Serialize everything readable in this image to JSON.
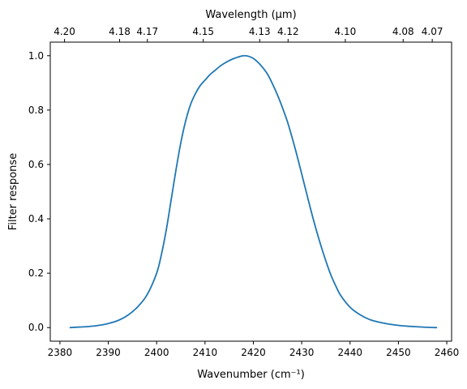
{
  "chart_data": {
    "type": "line",
    "title": "",
    "xlabel": "Wavenumber (cm⁻¹)",
    "ylabel": "Filter response",
    "top_xlabel": "Wavelength (μm)",
    "xlim": [
      2378,
      2461
    ],
    "ylim": [
      -0.05,
      1.05
    ],
    "grid": false,
    "legend": "none",
    "x_ticks": [
      2380,
      2390,
      2400,
      2410,
      2420,
      2430,
      2440,
      2450,
      2460
    ],
    "x_tick_labels": [
      "2380",
      "2390",
      "2400",
      "2410",
      "2420",
      "2430",
      "2440",
      "2450",
      "2460"
    ],
    "y_ticks": [
      0.0,
      0.2,
      0.4,
      0.6,
      0.8,
      1.0
    ],
    "y_tick_labels": [
      "0.0",
      "0.2",
      "0.4",
      "0.6",
      "0.8",
      "1.0"
    ],
    "top_ticks": [
      {
        "wavenumber": 2380.95,
        "label": "4.20"
      },
      {
        "wavenumber": 2392.34,
        "label": "4.18"
      },
      {
        "wavenumber": 2398.08,
        "label": "4.17"
      },
      {
        "wavenumber": 2409.64,
        "label": "4.15"
      },
      {
        "wavenumber": 2421.31,
        "label": "4.13"
      },
      {
        "wavenumber": 2427.18,
        "label": "4.12"
      },
      {
        "wavenumber": 2439.02,
        "label": "4.10"
      },
      {
        "wavenumber": 2450.98,
        "label": "4.08"
      },
      {
        "wavenumber": 2457.0,
        "label": "4.07"
      }
    ],
    "series": [
      {
        "color": "#1f77b4",
        "x": [
          2382,
          2384,
          2386,
          2388,
          2390,
          2392,
          2394,
          2396,
          2398,
          2400,
          2401,
          2402,
          2403,
          2404,
          2405,
          2406,
          2407,
          2408,
          2409,
          2410,
          2411,
          2412,
          2413,
          2414,
          2415,
          2416,
          2417,
          2418,
          2419,
          2420,
          2421,
          2422,
          2423,
          2424,
          2425,
          2426,
          2427,
          2428,
          2429,
          2430,
          2431,
          2432,
          2433,
          2434,
          2435,
          2436,
          2437,
          2438,
          2440,
          2442,
          2444,
          2446,
          2448,
          2450,
          2452,
          2454,
          2456,
          2458
        ],
        "y": [
          0.0,
          0.002,
          0.004,
          0.008,
          0.015,
          0.026,
          0.045,
          0.075,
          0.12,
          0.2,
          0.27,
          0.36,
          0.47,
          0.58,
          0.68,
          0.76,
          0.82,
          0.86,
          0.89,
          0.91,
          0.93,
          0.945,
          0.96,
          0.972,
          0.982,
          0.99,
          0.996,
          1.0,
          0.998,
          0.99,
          0.975,
          0.955,
          0.93,
          0.895,
          0.855,
          0.81,
          0.76,
          0.7,
          0.635,
          0.565,
          0.495,
          0.425,
          0.36,
          0.3,
          0.245,
          0.195,
          0.155,
          0.12,
          0.075,
          0.048,
          0.03,
          0.02,
          0.013,
          0.008,
          0.005,
          0.003,
          0.001,
          0.0
        ]
      }
    ]
  }
}
